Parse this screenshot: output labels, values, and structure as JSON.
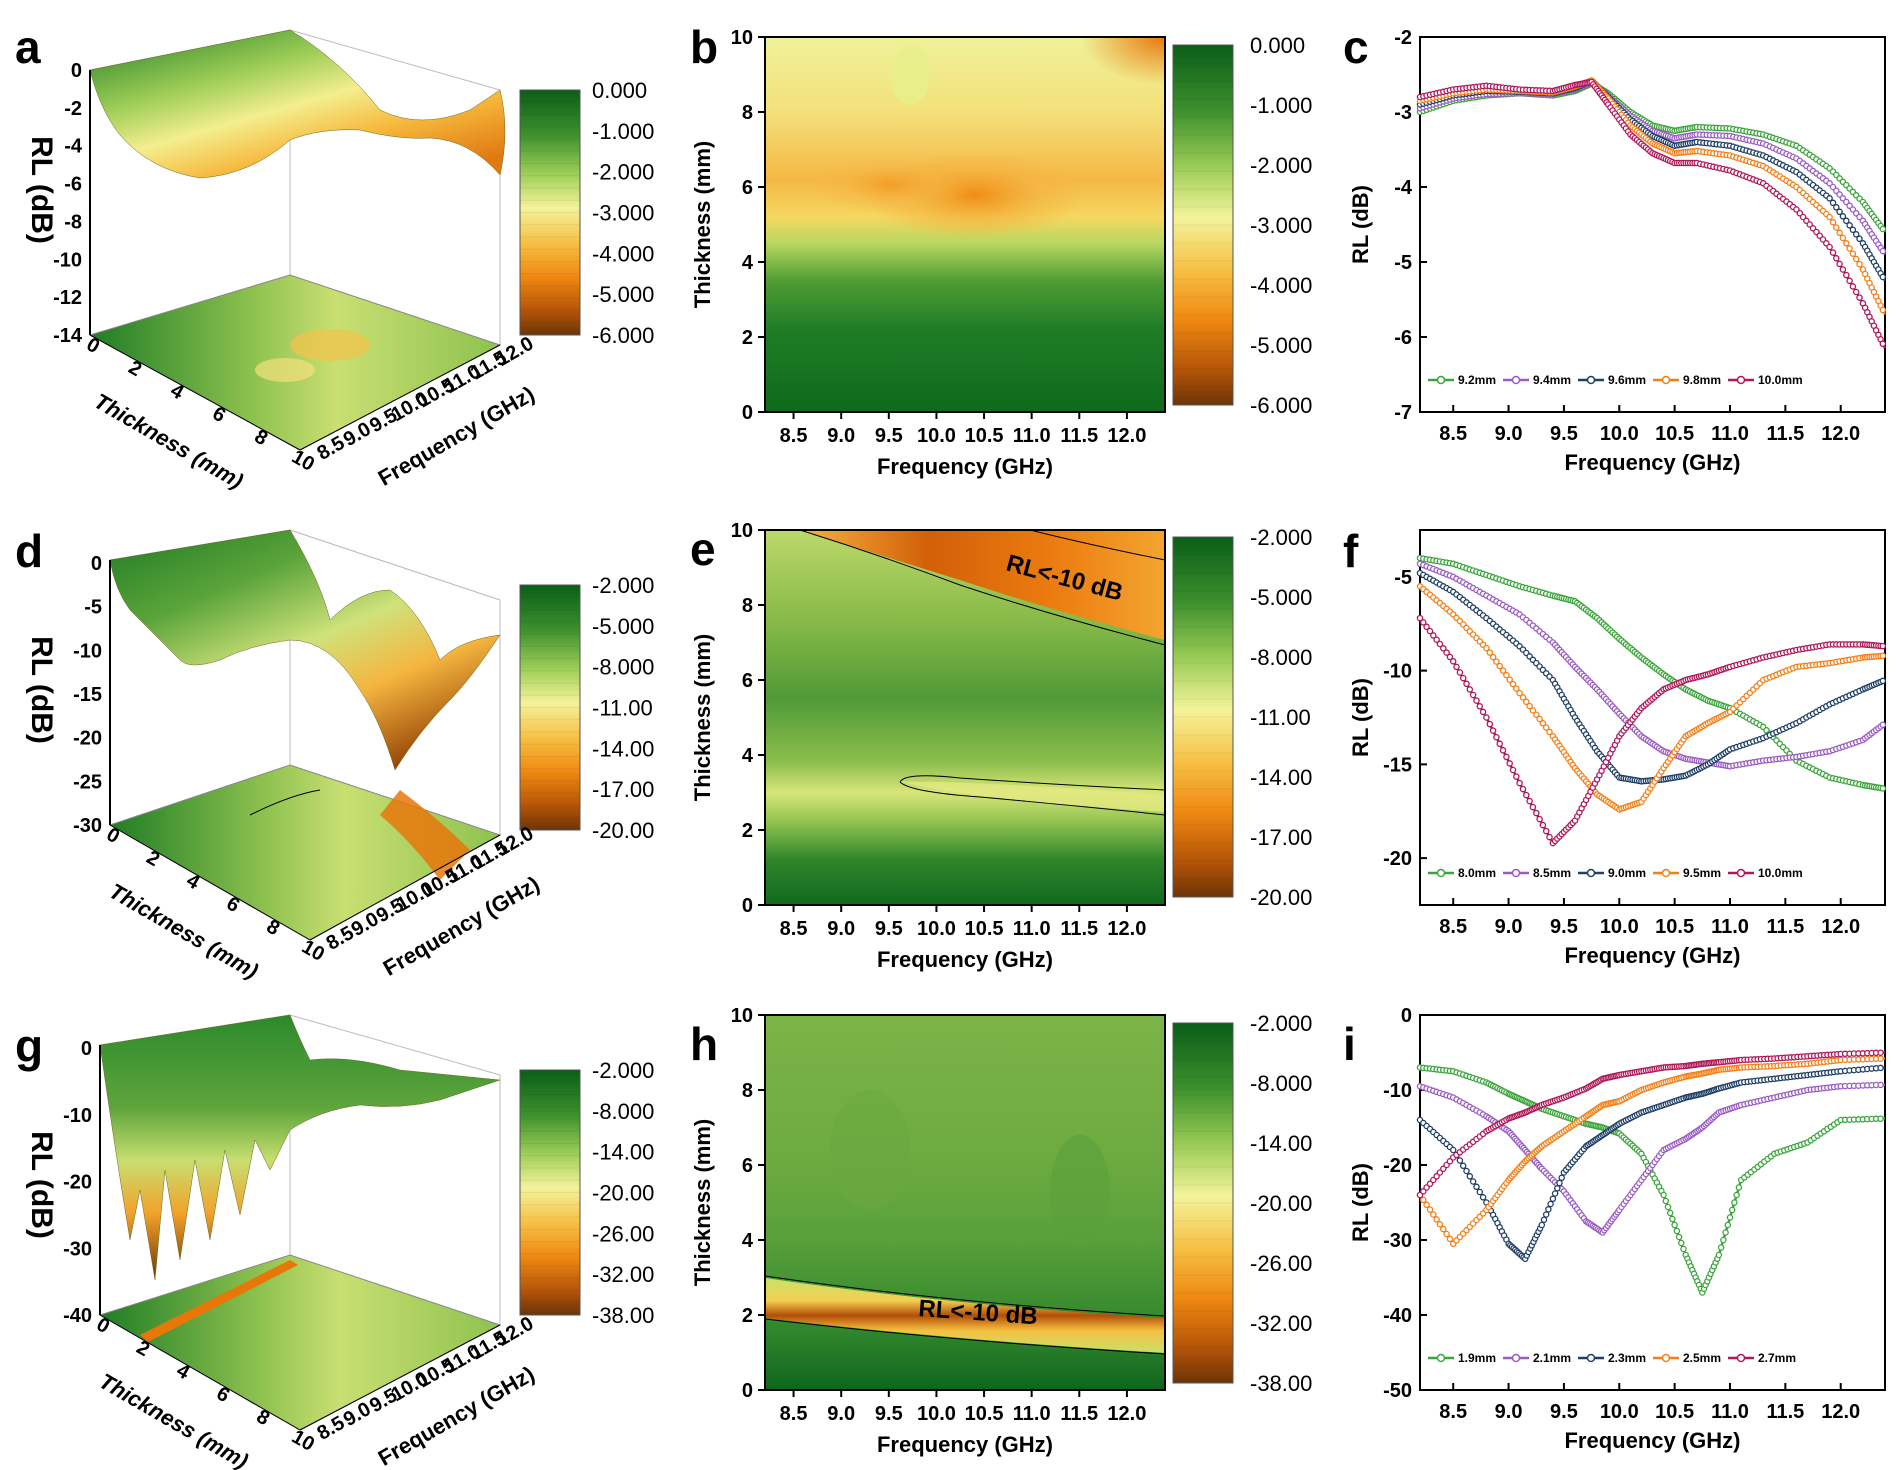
{
  "figure": {
    "panel_letters": [
      "a",
      "b",
      "c",
      "d",
      "e",
      "f",
      "g",
      "h",
      "i"
    ],
    "colors": {
      "dark_green": "#0e6b1e",
      "green": "#58a63a",
      "light_green": "#b8dc6e",
      "yellow": "#f7f49a",
      "orange": "#f5a623",
      "dark_orange": "#e8770a",
      "brown": "#7a3a08"
    }
  },
  "chart_data": [
    {
      "id": "a",
      "type": "surface3d",
      "title": "",
      "zlabel": "RL (dB)",
      "xlabel": "Thickness (mm)",
      "ylabel": "Frequency (GHz)",
      "zticks": [
        "0",
        "-2",
        "-4",
        "-6",
        "-8",
        "-10",
        "-12",
        "-14"
      ],
      "xticks": [
        "0",
        "2",
        "4",
        "6",
        "8",
        "10"
      ],
      "yticks": [
        "8.5",
        "9.0",
        "9.5",
        "10.0",
        "10.5",
        "11.0",
        "11.5",
        "12.0"
      ],
      "colorbar": [
        "0.000",
        "-1.000",
        "-2.000",
        "-3.000",
        "-4.000",
        "-5.000",
        "-6.000"
      ]
    },
    {
      "id": "b",
      "type": "heatmap",
      "xlabel": "Frequency (GHz)",
      "ylabel": "Thickness (mm)",
      "xticks": [
        "8.5",
        "9.0",
        "9.5",
        "10.0",
        "10.5",
        "11.0",
        "11.5",
        "12.0"
      ],
      "yticks": [
        "0",
        "2",
        "4",
        "6",
        "8",
        "10"
      ],
      "colorbar": [
        "0.000",
        "-1.000",
        "-2.000",
        "-3.000",
        "-4.000",
        "-5.000",
        "-6.000"
      ],
      "annotation": ""
    },
    {
      "id": "c",
      "type": "line",
      "xlabel": "Frequency (GHz)",
      "ylabel": "RL (dB)",
      "xlim": [
        8.2,
        12.4
      ],
      "ylim": [
        -7,
        -2
      ],
      "xticks": [
        "8.5",
        "9.0",
        "9.5",
        "10.0",
        "10.5",
        "11.0",
        "11.5",
        "12.0"
      ],
      "yticks": [
        "-2",
        "-3",
        "-4",
        "-5",
        "-6",
        "-7"
      ],
      "x": [
        8.2,
        8.5,
        8.8,
        9.1,
        9.4,
        9.6,
        9.75,
        9.9,
        10.1,
        10.3,
        10.5,
        10.7,
        11.0,
        11.3,
        11.6,
        11.9,
        12.2,
        12.4
      ],
      "series": [
        {
          "name": "9.2mm",
          "color": "#3aa53a",
          "values": [
            -3.0,
            -2.85,
            -2.78,
            -2.75,
            -2.78,
            -2.72,
            -2.62,
            -2.75,
            -3.0,
            -3.18,
            -3.25,
            -3.2,
            -3.22,
            -3.3,
            -3.45,
            -3.75,
            -4.2,
            -4.6
          ]
        },
        {
          "name": "9.4mm",
          "color": "#9a5cc4",
          "values": [
            -2.95,
            -2.82,
            -2.76,
            -2.75,
            -2.76,
            -2.7,
            -2.6,
            -2.78,
            -3.05,
            -3.25,
            -3.35,
            -3.3,
            -3.32,
            -3.42,
            -3.62,
            -3.95,
            -4.45,
            -4.9
          ]
        },
        {
          "name": "9.6mm",
          "color": "#1f3f66",
          "values": [
            -2.9,
            -2.78,
            -2.72,
            -2.73,
            -2.75,
            -2.68,
            -2.58,
            -2.8,
            -3.1,
            -3.32,
            -3.45,
            -3.4,
            -3.45,
            -3.58,
            -3.8,
            -4.15,
            -4.75,
            -5.25
          ]
        },
        {
          "name": "9.8mm",
          "color": "#f57f17",
          "values": [
            -2.85,
            -2.75,
            -2.7,
            -2.72,
            -2.74,
            -2.66,
            -2.58,
            -2.82,
            -3.18,
            -3.42,
            -3.55,
            -3.52,
            -3.58,
            -3.72,
            -4.0,
            -4.4,
            -5.1,
            -5.7
          ]
        },
        {
          "name": "10.0mm",
          "color": "#b0185a",
          "values": [
            -2.8,
            -2.7,
            -2.65,
            -2.7,
            -2.72,
            -2.64,
            -2.6,
            -2.9,
            -3.3,
            -3.55,
            -3.68,
            -3.68,
            -3.78,
            -3.95,
            -4.3,
            -4.8,
            -5.55,
            -6.15
          ]
        }
      ]
    },
    {
      "id": "d",
      "type": "surface3d",
      "zlabel": "RL (dB)",
      "xlabel": "Thickness (mm)",
      "ylabel": "Frequency (GHz)",
      "zticks": [
        "0",
        "-5",
        "-10",
        "-15",
        "-20",
        "-25",
        "-30"
      ],
      "xticks": [
        "0",
        "2",
        "4",
        "6",
        "8",
        "10"
      ],
      "yticks": [
        "8.5",
        "9.0",
        "9.5",
        "10.0",
        "10.5",
        "11.0",
        "11.5",
        "12.0"
      ],
      "colorbar": [
        "-2.000",
        "-5.000",
        "-8.000",
        "-11.00",
        "-14.00",
        "-17.00",
        "-20.00"
      ]
    },
    {
      "id": "e",
      "type": "heatmap",
      "xlabel": "Frequency (GHz)",
      "ylabel": "Thickness (mm)",
      "xticks": [
        "8.5",
        "9.0",
        "9.5",
        "10.0",
        "10.5",
        "11.0",
        "11.5",
        "12.0"
      ],
      "yticks": [
        "0",
        "2",
        "4",
        "6",
        "8",
        "10"
      ],
      "colorbar": [
        "-2.000",
        "-5.000",
        "-8.000",
        "-11.00",
        "-14.00",
        "-17.00",
        "-20.00"
      ],
      "annotation": "RL<-10 dB"
    },
    {
      "id": "f",
      "type": "line",
      "xlabel": "Frequency (GHz)",
      "ylabel": "RL (dB)",
      "xlim": [
        8.2,
        12.4
      ],
      "ylim": [
        -22.5,
        -2.5
      ],
      "xticks": [
        "8.5",
        "9.0",
        "9.5",
        "10.0",
        "10.5",
        "11.0",
        "11.5",
        "12.0"
      ],
      "yticks": [
        "-5",
        "-10",
        "-15",
        "-20"
      ],
      "x": [
        8.2,
        8.5,
        8.8,
        9.1,
        9.4,
        9.6,
        9.8,
        10.0,
        10.2,
        10.4,
        10.6,
        10.8,
        11.0,
        11.3,
        11.6,
        11.9,
        12.2,
        12.4
      ],
      "series": [
        {
          "name": "8.0mm",
          "color": "#3aa53a",
          "values": [
            -4.0,
            -4.3,
            -4.9,
            -5.5,
            -6.0,
            -6.3,
            -7.2,
            -8.3,
            -9.3,
            -10.2,
            -11.0,
            -11.6,
            -12.0,
            -13.0,
            -14.8,
            -15.7,
            -16.1,
            -16.3
          ]
        },
        {
          "name": "8.5mm",
          "color": "#9a5cc4",
          "values": [
            -4.3,
            -5.0,
            -6.0,
            -7.0,
            -8.5,
            -9.8,
            -11.0,
            -12.3,
            -13.5,
            -14.3,
            -14.7,
            -14.9,
            -15.1,
            -14.8,
            -14.6,
            -14.3,
            -13.7,
            -12.8
          ]
        },
        {
          "name": "9.0mm",
          "color": "#1f3f66",
          "values": [
            -4.8,
            -5.8,
            -7.2,
            -8.7,
            -10.5,
            -12.5,
            -14.3,
            -15.7,
            -15.9,
            -15.8,
            -15.6,
            -15.0,
            -14.2,
            -13.6,
            -12.8,
            -11.8,
            -11.0,
            -10.5
          ]
        },
        {
          "name": "9.5mm",
          "color": "#f57f17",
          "values": [
            -5.5,
            -7.0,
            -8.8,
            -11.2,
            -13.5,
            -15.2,
            -16.6,
            -17.4,
            -17.0,
            -15.2,
            -13.5,
            -12.8,
            -12.2,
            -10.5,
            -9.8,
            -9.6,
            -9.3,
            -9.2
          ]
        },
        {
          "name": "10.0mm",
          "color": "#b0185a",
          "values": [
            -7.2,
            -9.5,
            -12.5,
            -16.0,
            -19.2,
            -18.0,
            -15.8,
            -13.5,
            -12.0,
            -11.0,
            -10.5,
            -10.2,
            -9.8,
            -9.3,
            -8.9,
            -8.6,
            -8.6,
            -8.7
          ]
        }
      ]
    },
    {
      "id": "g",
      "type": "surface3d",
      "zlabel": "RL (dB)",
      "xlabel": "Thickness (mm)",
      "ylabel": "Frequency (GHz)",
      "zticks": [
        "0",
        "-10",
        "-20",
        "-30",
        "-40"
      ],
      "xticks": [
        "0",
        "2",
        "4",
        "6",
        "8",
        "10"
      ],
      "yticks": [
        "8.5",
        "9.0",
        "9.5",
        "10.0",
        "10.5",
        "11.0",
        "11.5",
        "12.0"
      ],
      "colorbar": [
        "-2.000",
        "-8.000",
        "-14.00",
        "-20.00",
        "-26.00",
        "-32.00",
        "-38.00"
      ]
    },
    {
      "id": "h",
      "type": "heatmap",
      "xlabel": "Frequency (GHz)",
      "ylabel": "Thickness (mm)",
      "xticks": [
        "8.5",
        "9.0",
        "9.5",
        "10.0",
        "10.5",
        "11.0",
        "11.5",
        "12.0"
      ],
      "yticks": [
        "0",
        "2",
        "4",
        "6",
        "8",
        "10"
      ],
      "colorbar": [
        "-2.000",
        "-8.000",
        "-14.00",
        "-20.00",
        "-26.00",
        "-32.00",
        "-38.00"
      ],
      "annotation": "RL<-10 dB"
    },
    {
      "id": "i",
      "type": "line",
      "xlabel": "Frequency (GHz)",
      "ylabel": "RL (dB)",
      "xlim": [
        8.2,
        12.4
      ],
      "ylim": [
        -50,
        0
      ],
      "xticks": [
        "8.5",
        "9.0",
        "9.5",
        "10.0",
        "10.5",
        "11.0",
        "11.5",
        "12.0"
      ],
      "yticks": [
        "0",
        "-10",
        "-20",
        "-30",
        "-40",
        "-50"
      ],
      "x": [
        8.2,
        8.5,
        8.8,
        9.0,
        9.15,
        9.3,
        9.5,
        9.7,
        9.85,
        10.0,
        10.2,
        10.4,
        10.6,
        10.75,
        10.9,
        11.1,
        11.4,
        11.7,
        12.0,
        12.4
      ],
      "series": [
        {
          "name": "1.9mm",
          "color": "#3aa53a",
          "values": [
            -7.0,
            -7.5,
            -9.0,
            -10.5,
            -11.5,
            -12.5,
            -13.5,
            -14.5,
            -15.0,
            -15.8,
            -18.5,
            -24.0,
            -32.0,
            -37.0,
            -32.0,
            -22.0,
            -18.5,
            -17.0,
            -14.0,
            -13.8
          ]
        },
        {
          "name": "2.1mm",
          "color": "#9a5cc4",
          "values": [
            -9.5,
            -11.0,
            -13.5,
            -15.5,
            -18.0,
            -20.5,
            -23.5,
            -27.5,
            -29.0,
            -26.0,
            -22.0,
            -18.0,
            -16.5,
            -15.0,
            -13.0,
            -12.0,
            -11.0,
            -10.0,
            -9.5,
            -9.3
          ]
        },
        {
          "name": "2.3mm",
          "color": "#1f3f66",
          "values": [
            -14.0,
            -18.0,
            -25.0,
            -30.5,
            -32.5,
            -28.0,
            -21.0,
            -17.5,
            -16.0,
            -14.5,
            -13.0,
            -12.0,
            -11.0,
            -10.5,
            -9.8,
            -9.0,
            -8.5,
            -8.0,
            -7.5,
            -7.0
          ]
        },
        {
          "name": "2.5mm",
          "color": "#f57f17",
          "values": [
            -24.0,
            -30.5,
            -26.0,
            -22.0,
            -19.5,
            -17.5,
            -15.5,
            -13.5,
            -12.0,
            -11.5,
            -10.0,
            -9.0,
            -8.2,
            -7.8,
            -7.3,
            -7.0,
            -6.8,
            -6.5,
            -6.0,
            -5.8
          ]
        },
        {
          "name": "2.7mm",
          "color": "#b0185a",
          "values": [
            -24.0,
            -19.0,
            -15.5,
            -13.8,
            -13.0,
            -12.0,
            -11.0,
            -9.8,
            -8.5,
            -8.0,
            -7.5,
            -7.0,
            -6.8,
            -6.5,
            -6.3,
            -6.0,
            -5.8,
            -5.5,
            -5.2,
            -5.0
          ]
        }
      ]
    }
  ]
}
